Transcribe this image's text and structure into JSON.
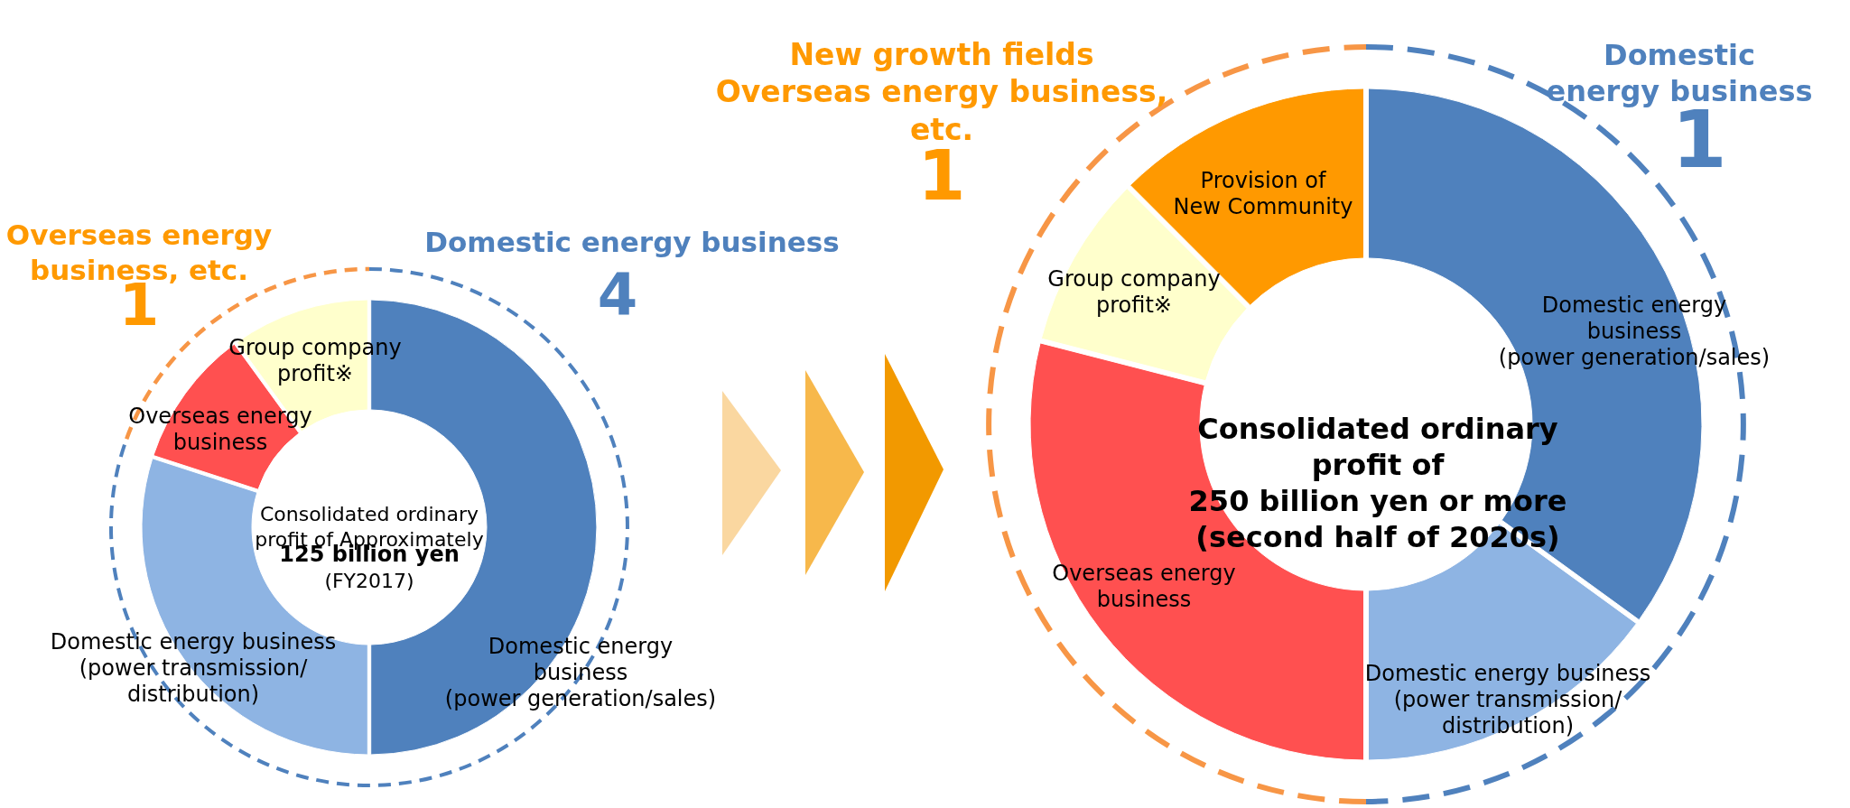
{
  "chart_data": [
    {
      "type": "donut",
      "categories": [
        "Domestic energy\nbusiness\n(power generation/sales)",
        "Domestic energy business\n(power transmission/\ndistribution)",
        "Overseas energy\nbusiness",
        "Group company\nprofit※"
      ],
      "values": [
        50,
        30,
        10,
        10
      ],
      "colors": [
        "#4f81bd",
        "#8eb4e3",
        "#ff5050",
        "#ffffcc"
      ],
      "annotations": [
        "Overseas energy\nbusiness, etc.",
        "1",
        "Domestic energy business",
        "4",
        "Consolidated ordinary\nprofit of Approximately",
        "125 billion yen",
        "(FY2017)"
      ]
    },
    {
      "type": "donut",
      "categories": [
        "Domestic energy\nbusiness\n(power generation/sales)",
        "Domestic energy business\n(power transmission/\ndistribution)",
        "Overseas energy\nbusiness",
        "Group company\nprofit※",
        "Provision of\nNew Community"
      ],
      "values": [
        35,
        15,
        29,
        8.5,
        12.5
      ],
      "colors": [
        "#4f81bd",
        "#8eb4e3",
        "#ff5050",
        "#ffffcc",
        "#ff9900"
      ],
      "annotations": [
        "New growth fields\nOverseas energy business,\netc.",
        "1",
        "Domestic\nenergy business",
        "1",
        "Consolidated ordinary\nprofit of\n250 billion yen or more\n(second half of 2020s)"
      ]
    }
  ]
}
